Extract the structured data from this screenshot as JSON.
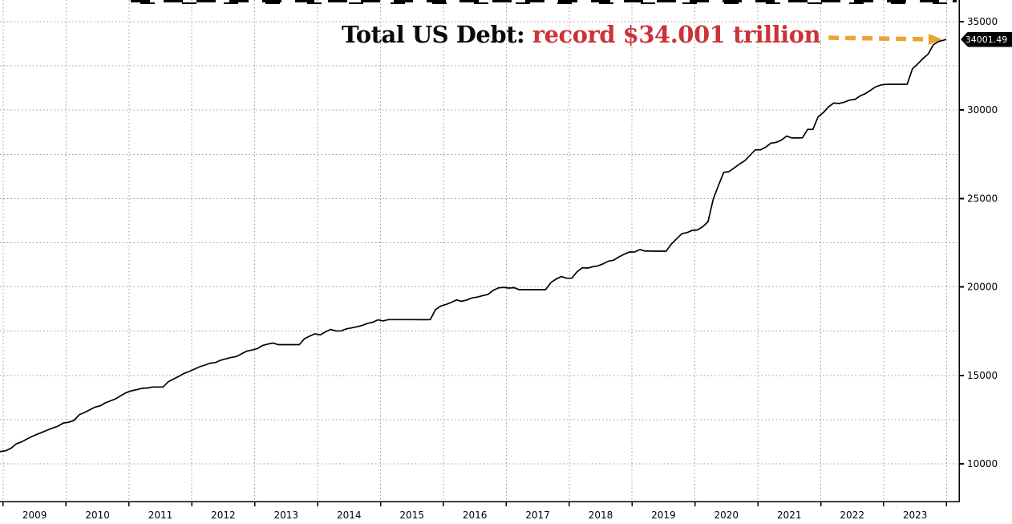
{
  "title": {
    "prefix": "Total US Debt: ",
    "highlight": "record $34.001 trillion"
  },
  "colors": {
    "line": "#000000",
    "grid": "#999999",
    "title_text": "#0a0a0a",
    "title_highlight": "#cb3339",
    "arrow": "#eea236",
    "tag_bg": "#000000",
    "tag_text": "#ffffff"
  },
  "chart_data": {
    "type": "line",
    "title": "Total US Debt: record $34.001 trillion",
    "grid": "dotted",
    "legend_position": "none",
    "x_axis": {
      "labels": [
        "2009",
        "2010",
        "2011",
        "2012",
        "2013",
        "2014",
        "2015",
        "2016",
        "2017",
        "2018",
        "2019",
        "2020",
        "2021",
        "2022",
        "2023"
      ],
      "gridlines": [
        2009,
        2010,
        2011,
        2012,
        2013,
        2014,
        2015,
        2016,
        2017,
        2018,
        2019,
        2020,
        2021,
        2022,
        2023,
        2024
      ],
      "range": [
        2008.95,
        2024.2
      ]
    },
    "y_axis": {
      "ticks": [
        10000,
        15000,
        20000,
        25000,
        30000,
        35000
      ],
      "grid_values": [
        10000,
        12500,
        15000,
        17500,
        20000,
        22500,
        25000,
        27500,
        30000,
        32500,
        35000
      ],
      "range": [
        7868,
        36225
      ]
    },
    "last_value": 34001.49,
    "last_value_label": "34001.49",
    "series": [
      {
        "name": "Total US Debt",
        "points": [
          [
            2008.9,
            10660
          ],
          [
            2008.958,
            10700
          ],
          [
            2009.042,
            10740
          ],
          [
            2009.125,
            10878
          ],
          [
            2009.208,
            11127
          ],
          [
            2009.292,
            11240
          ],
          [
            2009.375,
            11400
          ],
          [
            2009.458,
            11545
          ],
          [
            2009.542,
            11670
          ],
          [
            2009.625,
            11790
          ],
          [
            2009.708,
            11910
          ],
          [
            2009.792,
            12030
          ],
          [
            2009.875,
            12135
          ],
          [
            2009.958,
            12311
          ],
          [
            2010.042,
            12350
          ],
          [
            2010.125,
            12450
          ],
          [
            2010.208,
            12773
          ],
          [
            2010.292,
            12900
          ],
          [
            2010.375,
            13050
          ],
          [
            2010.458,
            13202
          ],
          [
            2010.542,
            13280
          ],
          [
            2010.625,
            13450
          ],
          [
            2010.708,
            13562
          ],
          [
            2010.792,
            13680
          ],
          [
            2010.875,
            13860
          ],
          [
            2010.958,
            14025
          ],
          [
            2011.042,
            14130
          ],
          [
            2011.125,
            14195
          ],
          [
            2011.208,
            14270
          ],
          [
            2011.292,
            14288
          ],
          [
            2011.375,
            14344
          ],
          [
            2011.458,
            14343
          ],
          [
            2011.542,
            14343
          ],
          [
            2011.625,
            14639
          ],
          [
            2011.708,
            14790
          ],
          [
            2011.792,
            14940
          ],
          [
            2011.875,
            15110
          ],
          [
            2011.958,
            15223
          ],
          [
            2012.042,
            15356
          ],
          [
            2012.125,
            15489
          ],
          [
            2012.208,
            15582
          ],
          [
            2012.292,
            15692
          ],
          [
            2012.375,
            15725
          ],
          [
            2012.458,
            15856
          ],
          [
            2012.542,
            15933
          ],
          [
            2012.625,
            16015
          ],
          [
            2012.708,
            16066
          ],
          [
            2012.792,
            16222
          ],
          [
            2012.875,
            16369
          ],
          [
            2012.958,
            16433
          ],
          [
            2013.042,
            16511
          ],
          [
            2013.125,
            16687
          ],
          [
            2013.208,
            16771
          ],
          [
            2013.292,
            16829
          ],
          [
            2013.375,
            16738
          ],
          [
            2013.458,
            16738
          ],
          [
            2013.542,
            16738
          ],
          [
            2013.625,
            16738
          ],
          [
            2013.708,
            16738
          ],
          [
            2013.792,
            17076
          ],
          [
            2013.875,
            17217
          ],
          [
            2013.958,
            17352
          ],
          [
            2014.042,
            17293
          ],
          [
            2014.125,
            17463
          ],
          [
            2014.208,
            17601
          ],
          [
            2014.292,
            17508
          ],
          [
            2014.375,
            17517
          ],
          [
            2014.458,
            17633
          ],
          [
            2014.542,
            17687
          ],
          [
            2014.625,
            17749
          ],
          [
            2014.708,
            17824
          ],
          [
            2014.792,
            17937
          ],
          [
            2014.875,
            18005
          ],
          [
            2014.958,
            18141
          ],
          [
            2015.042,
            18082
          ],
          [
            2015.125,
            18155
          ],
          [
            2015.208,
            18152
          ],
          [
            2015.292,
            18152
          ],
          [
            2015.375,
            18152
          ],
          [
            2015.458,
            18152
          ],
          [
            2015.542,
            18152
          ],
          [
            2015.625,
            18151
          ],
          [
            2015.708,
            18151
          ],
          [
            2015.792,
            18153
          ],
          [
            2015.875,
            18722
          ],
          [
            2015.958,
            18922
          ],
          [
            2016.042,
            19012
          ],
          [
            2016.125,
            19125
          ],
          [
            2016.208,
            19265
          ],
          [
            2016.292,
            19187
          ],
          [
            2016.375,
            19265
          ],
          [
            2016.458,
            19382
          ],
          [
            2016.542,
            19427
          ],
          [
            2016.625,
            19510
          ],
          [
            2016.708,
            19573
          ],
          [
            2016.792,
            19805
          ],
          [
            2016.875,
            19948
          ],
          [
            2016.958,
            19977
          ],
          [
            2017.042,
            19937
          ],
          [
            2017.125,
            19959
          ],
          [
            2017.208,
            19846
          ],
          [
            2017.292,
            19846
          ],
          [
            2017.375,
            19846
          ],
          [
            2017.458,
            19845
          ],
          [
            2017.542,
            19845
          ],
          [
            2017.625,
            19845
          ],
          [
            2017.708,
            20245
          ],
          [
            2017.792,
            20443
          ],
          [
            2017.875,
            20591
          ],
          [
            2017.958,
            20493
          ],
          [
            2018.042,
            20494
          ],
          [
            2018.125,
            20856
          ],
          [
            2018.208,
            21090
          ],
          [
            2018.292,
            21068
          ],
          [
            2018.375,
            21145
          ],
          [
            2018.458,
            21195
          ],
          [
            2018.542,
            21313
          ],
          [
            2018.625,
            21459
          ],
          [
            2018.708,
            21516
          ],
          [
            2018.792,
            21702
          ],
          [
            2018.875,
            21850
          ],
          [
            2018.958,
            21974
          ],
          [
            2019.042,
            21984
          ],
          [
            2019.125,
            22115
          ],
          [
            2019.208,
            22028
          ],
          [
            2019.292,
            22027
          ],
          [
            2019.375,
            22026
          ],
          [
            2019.458,
            22023
          ],
          [
            2019.542,
            22022
          ],
          [
            2019.625,
            22428
          ],
          [
            2019.708,
            22719
          ],
          [
            2019.792,
            23008
          ],
          [
            2019.875,
            23076
          ],
          [
            2019.958,
            23201
          ],
          [
            2020.042,
            23224
          ],
          [
            2020.125,
            23409
          ],
          [
            2020.208,
            23687
          ],
          [
            2020.292,
            24974
          ],
          [
            2020.375,
            25746
          ],
          [
            2020.458,
            26477
          ],
          [
            2020.542,
            26525
          ],
          [
            2020.625,
            26728
          ],
          [
            2020.708,
            26945
          ],
          [
            2020.792,
            27137
          ],
          [
            2020.875,
            27438
          ],
          [
            2020.958,
            27748
          ],
          [
            2021.042,
            27748
          ],
          [
            2021.125,
            27902
          ],
          [
            2021.208,
            28133
          ],
          [
            2021.292,
            28175
          ],
          [
            2021.375,
            28303
          ],
          [
            2021.458,
            28529
          ],
          [
            2021.542,
            28427
          ],
          [
            2021.625,
            28427
          ],
          [
            2021.708,
            28429
          ],
          [
            2021.792,
            28909
          ],
          [
            2021.875,
            28908
          ],
          [
            2021.958,
            29618
          ],
          [
            2022.042,
            29866
          ],
          [
            2022.125,
            30190
          ],
          [
            2022.208,
            30401
          ],
          [
            2022.292,
            30371
          ],
          [
            2022.375,
            30449
          ],
          [
            2022.458,
            30569
          ],
          [
            2022.542,
            30600
          ],
          [
            2022.625,
            30800
          ],
          [
            2022.708,
            30929
          ],
          [
            2022.792,
            31123
          ],
          [
            2022.875,
            31320
          ],
          [
            2022.958,
            31420
          ],
          [
            2023.042,
            31455
          ],
          [
            2023.125,
            31459
          ],
          [
            2023.208,
            31459
          ],
          [
            2023.292,
            31458
          ],
          [
            2023.375,
            31465
          ],
          [
            2023.458,
            32332
          ],
          [
            2023.542,
            32608
          ],
          [
            2023.625,
            32914
          ],
          [
            2023.708,
            33167
          ],
          [
            2023.792,
            33700
          ],
          [
            2023.875,
            33878
          ],
          [
            2023.958,
            33950
          ],
          [
            2023.995,
            34001.49
          ]
        ]
      }
    ]
  }
}
